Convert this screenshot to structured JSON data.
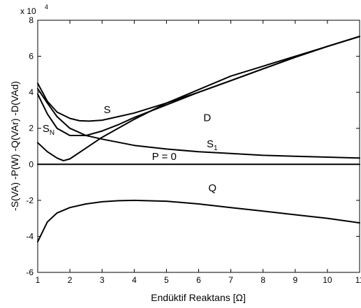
{
  "chart_data": {
    "type": "line",
    "title": "",
    "xlabel": "Endüktif Reaktans [Ω]",
    "ylabel": "-S(VA) -P(W) -Q(VAr) -D(VAd)",
    "y_exponent_label": "x 10",
    "y_exponent_power": "4",
    "xlim": [
      1,
      11
    ],
    "ylim": [
      -6,
      8
    ],
    "y_scale": 10000,
    "grid": false,
    "legend": "none",
    "x_ticks": [
      1,
      2,
      3,
      4,
      5,
      6,
      7,
      8,
      9,
      10,
      11
    ],
    "x_tick_labels": [
      "1",
      "2",
      "3",
      "4",
      "5",
      "6",
      "7",
      "8",
      "9",
      "10",
      "11"
    ],
    "y_ticks": [
      -6,
      -4,
      -2,
      0,
      2,
      4,
      6,
      8
    ],
    "y_tick_labels": [
      "-6",
      "-4",
      "-2",
      "0",
      "2",
      "4",
      "6",
      "8"
    ],
    "series": [
      {
        "name": "S",
        "x": [
          1,
          1.3,
          1.6,
          2,
          2.3,
          2.6,
          3,
          3.5,
          4,
          5,
          6,
          7,
          8,
          9,
          10,
          11
        ],
        "y": [
          4.5,
          3.5,
          2.9,
          2.55,
          2.42,
          2.4,
          2.45,
          2.65,
          2.85,
          3.4,
          4.0,
          4.65,
          5.3,
          5.95,
          6.55,
          7.1
        ]
      },
      {
        "name": "S_N",
        "x": [
          1,
          1.3,
          1.6,
          2,
          2.5,
          3,
          3.5,
          4,
          5,
          6,
          7,
          8,
          9,
          10,
          11
        ],
        "y": [
          3.9,
          2.8,
          2.0,
          1.6,
          1.6,
          1.85,
          2.2,
          2.6,
          3.3,
          4.0,
          4.65,
          5.3,
          5.95,
          6.55,
          7.1
        ]
      },
      {
        "name": "D",
        "x": [
          1,
          1.3,
          1.6,
          1.8,
          2,
          2.5,
          3,
          4,
          5,
          6,
          7,
          8,
          9,
          10,
          11
        ],
        "y": [
          1.2,
          0.7,
          0.35,
          0.2,
          0.3,
          0.9,
          1.5,
          2.5,
          3.4,
          4.15,
          4.9,
          5.45,
          6.0,
          6.55,
          7.1
        ]
      },
      {
        "name": "S_1",
        "x": [
          1,
          1.3,
          1.6,
          2,
          2.5,
          3,
          4,
          5,
          6,
          7,
          8,
          9,
          10,
          11
        ],
        "y": [
          4.2,
          3.4,
          2.65,
          2.0,
          1.6,
          1.4,
          1.05,
          0.85,
          0.7,
          0.6,
          0.5,
          0.45,
          0.4,
          0.35
        ]
      },
      {
        "name": "P = 0",
        "x": [
          1,
          11
        ],
        "y": [
          0,
          0
        ]
      },
      {
        "name": "Q",
        "x": [
          1,
          1.3,
          1.6,
          2,
          2.5,
          3,
          3.5,
          4,
          5,
          6,
          7,
          8,
          9,
          10,
          11
        ],
        "y": [
          -4.3,
          -3.2,
          -2.7,
          -2.4,
          -2.2,
          -2.08,
          -2.02,
          -2.0,
          -2.05,
          -2.2,
          -2.4,
          -2.6,
          -2.8,
          -3.0,
          -3.25
        ]
      }
    ],
    "annotations": [
      {
        "label": "S",
        "subscript": "",
        "x": 3.05,
        "y": 2.85
      },
      {
        "label": "D",
        "subscript": "",
        "x": 6.15,
        "y": 2.4
      },
      {
        "label": "S",
        "subscript": "N",
        "x": 1.15,
        "y": 1.8
      },
      {
        "label": "S",
        "subscript": "1",
        "x": 6.25,
        "y": 0.95
      },
      {
        "label": "P = 0",
        "subscript": "",
        "x": 4.55,
        "y": 0.25
      },
      {
        "label": "Q",
        "subscript": "",
        "x": 6.3,
        "y": -1.5
      }
    ]
  }
}
